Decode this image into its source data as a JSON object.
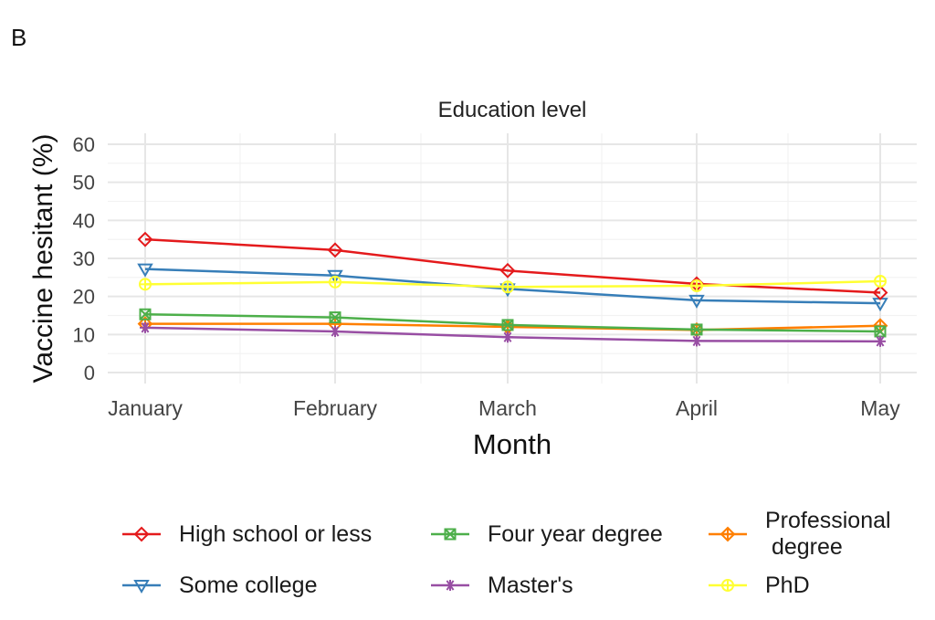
{
  "panel_label": "B",
  "chart_data": {
    "type": "line",
    "title": "Education level",
    "xlabel": "Month",
    "ylabel": "Vaccine hesitant (%)",
    "categories": [
      "January",
      "February",
      "March",
      "April",
      "May"
    ],
    "ylim": [
      0,
      60
    ],
    "yticks": [
      0,
      10,
      20,
      30,
      40,
      50,
      60
    ],
    "grid": true,
    "legend_position": "bottom",
    "series": [
      {
        "name": "High school or less",
        "color": "#e41a1c",
        "marker": "diamond",
        "values": [
          35,
          32.2,
          26.8,
          23.3,
          21
        ]
      },
      {
        "name": "Some college",
        "color": "#377eb8",
        "marker": "triangle-down",
        "values": [
          27.2,
          25.5,
          22,
          19,
          18.2
        ]
      },
      {
        "name": "Four year degree",
        "color": "#4daf4a",
        "marker": "square-x",
        "values": [
          15.3,
          14.5,
          12.5,
          11.3,
          10.8
        ]
      },
      {
        "name": "Master's",
        "color": "#984ea3",
        "marker": "asterisk",
        "values": [
          11.8,
          10.8,
          9.3,
          8.3,
          8.2
        ]
      },
      {
        "name": "Professional\n degree",
        "color": "#ff7f00",
        "marker": "diamond-plus",
        "values": [
          12.8,
          12.8,
          12,
          11.2,
          12.3
        ]
      },
      {
        "name": "PhD",
        "color": "#ffff33",
        "marker": "circle-plus",
        "values": [
          23.2,
          23.8,
          22.5,
          22.8,
          24
        ]
      }
    ]
  }
}
